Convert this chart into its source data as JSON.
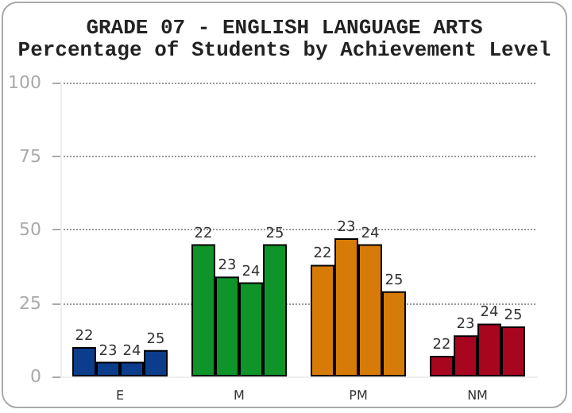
{
  "chart_data": {
    "type": "bar",
    "title": "GRADE 07 - ENGLISH LANGUAGE ARTS",
    "subtitle": "Percentage of Students by Achievement Level",
    "categories": [
      "E",
      "M",
      "PM",
      "NM"
    ],
    "series": [
      {
        "name": "22",
        "colors": [
          "#0b3d8c",
          "#0e9428",
          "#d67b07",
          "#a8051f"
        ],
        "values": [
          10,
          45,
          38,
          7
        ]
      },
      {
        "name": "23",
        "colors": [
          "#0b3d8c",
          "#0e9428",
          "#d67b07",
          "#a8051f"
        ],
        "values": [
          5,
          34,
          47,
          14
        ]
      },
      {
        "name": "24",
        "colors": [
          "#0b3d8c",
          "#0e9428",
          "#d67b07",
          "#a8051f"
        ],
        "values": [
          5,
          32,
          45,
          18
        ]
      },
      {
        "name": "25",
        "colors": [
          "#0b3d8c",
          "#0e9428",
          "#d67b07",
          "#a8051f"
        ],
        "values": [
          9,
          45,
          29,
          17
        ]
      }
    ],
    "ylim": [
      0,
      100
    ],
    "yticks": [
      0,
      25,
      50,
      75,
      100
    ],
    "grid": "y",
    "legend": false
  }
}
